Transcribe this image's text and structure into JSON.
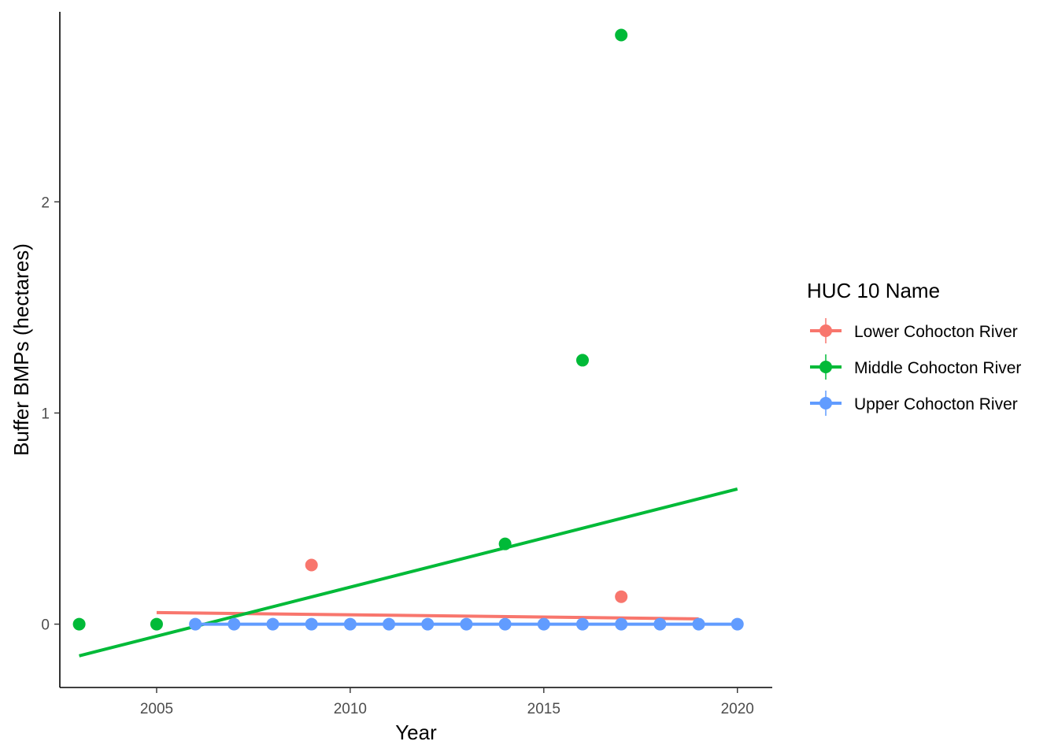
{
  "chart_data": {
    "type": "scatter",
    "xlabel": "Year",
    "ylabel": "Buffer BMPs (hectares)",
    "xlim": [
      2002.5,
      2020.9
    ],
    "ylim": [
      -0.3,
      2.9
    ],
    "x_ticks": [
      2005,
      2010,
      2015,
      2020
    ],
    "x_tick_labels": [
      "2005",
      "2010",
      "2015",
      "2020"
    ],
    "y_ticks": [
      0,
      1,
      2
    ],
    "y_tick_labels": [
      "0",
      "1",
      "2"
    ],
    "grid": false,
    "legend": {
      "title": "HUC 10 Name",
      "position": "right"
    },
    "series": [
      {
        "name": "Lower Cohocton River",
        "color": "#F8766D",
        "points": [
          {
            "x": 2009,
            "y": 0.28
          },
          {
            "x": 2017,
            "y": 0.13
          }
        ],
        "trend": {
          "x": [
            2005,
            2019
          ],
          "y": [
            0.055,
            0.025
          ]
        }
      },
      {
        "name": "Middle Cohocton River",
        "color": "#00BA38",
        "points": [
          {
            "x": 2003,
            "y": 0.0
          },
          {
            "x": 2005,
            "y": 0.0
          },
          {
            "x": 2014,
            "y": 0.38
          },
          {
            "x": 2016,
            "y": 1.25
          },
          {
            "x": 2017,
            "y": 2.79
          }
        ],
        "trend": {
          "x": [
            2003,
            2020
          ],
          "y": [
            -0.15,
            0.64
          ]
        }
      },
      {
        "name": "Upper Cohocton River",
        "color": "#619CFF",
        "points": [
          {
            "x": 2006,
            "y": 0
          },
          {
            "x": 2007,
            "y": 0
          },
          {
            "x": 2008,
            "y": 0
          },
          {
            "x": 2009,
            "y": 0
          },
          {
            "x": 2010,
            "y": 0
          },
          {
            "x": 2011,
            "y": 0
          },
          {
            "x": 2012,
            "y": 0
          },
          {
            "x": 2013,
            "y": 0
          },
          {
            "x": 2014,
            "y": 0
          },
          {
            "x": 2015,
            "y": 0
          },
          {
            "x": 2016,
            "y": 0
          },
          {
            "x": 2017,
            "y": 0
          },
          {
            "x": 2018,
            "y": 0
          },
          {
            "x": 2019,
            "y": 0
          },
          {
            "x": 2020,
            "y": 0
          }
        ],
        "trend": {
          "x": [
            2006,
            2020
          ],
          "y": [
            0,
            0
          ]
        }
      }
    ]
  }
}
